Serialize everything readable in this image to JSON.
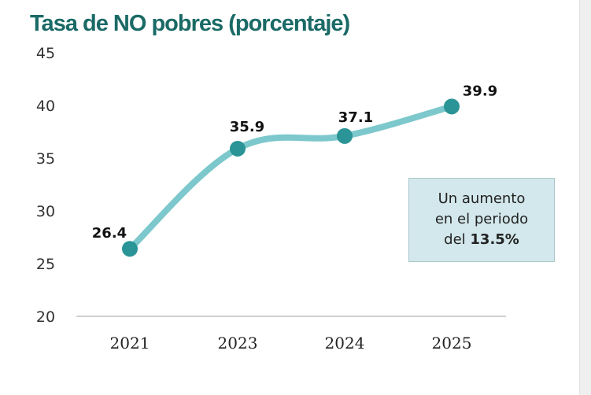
{
  "chart_data": {
    "type": "line",
    "title": "Tasa de NO pobres (porcentaje)",
    "categories": [
      "2021",
      "2023",
      "2024",
      "2025"
    ],
    "values": [
      26.4,
      35.9,
      37.1,
      39.9
    ],
    "data_labels": [
      "26.4",
      "35.9",
      "37.1",
      "39.9"
    ],
    "ylim": [
      20,
      45
    ],
    "yticks": [
      "20",
      "25",
      "30",
      "35",
      "40",
      "45"
    ],
    "xlabel": "",
    "ylabel": "",
    "grid": false,
    "smooth": true,
    "colors": {
      "line": "#7cc8cc",
      "marker": "#2a9496",
      "title": "#1a6a66",
      "note_bg": "#d3e8ec"
    },
    "annotation": {
      "line1": "Un  aumento",
      "line2": "en el periodo",
      "prefix": "del ",
      "value": "13.5%"
    }
  }
}
